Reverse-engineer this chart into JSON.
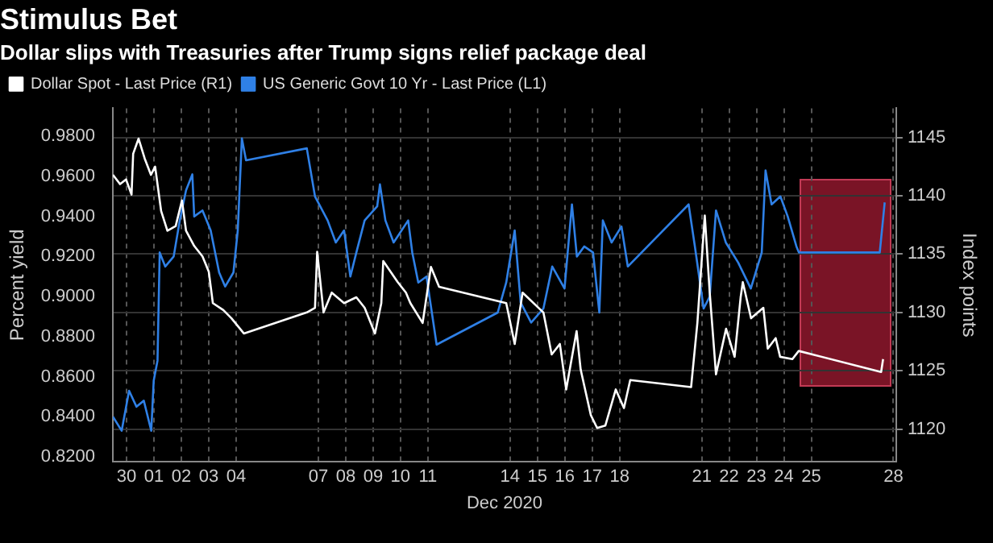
{
  "chart_data": {
    "type": "line",
    "title": "Stimulus Bet",
    "subtitle": "Dollar slips with Treasuries after Trump signs relief package deal",
    "xlabel": "Dec 2020",
    "ylabel": "Percent yield",
    "y2label": "Index points",
    "xlim": [
      "2020-11-30T00:00",
      "2020-12-28T14:24"
    ],
    "xticks": [
      {
        "value": "2020-11-30T12:00",
        "label": "30"
      },
      {
        "value": "2020-12-01T12:00",
        "label": "01"
      },
      {
        "value": "2020-12-02T12:00",
        "label": "02"
      },
      {
        "value": "2020-12-03T12:00",
        "label": "03"
      },
      {
        "value": "2020-12-04T12:00",
        "label": "04"
      },
      {
        "value": "2020-12-07T12:00",
        "label": "07"
      },
      {
        "value": "2020-12-08T12:00",
        "label": "08"
      },
      {
        "value": "2020-12-09T12:00",
        "label": "09"
      },
      {
        "value": "2020-12-10T12:00",
        "label": "10"
      },
      {
        "value": "2020-12-11T12:00",
        "label": "11"
      },
      {
        "value": "2020-12-14T12:00",
        "label": "14"
      },
      {
        "value": "2020-12-15T12:00",
        "label": "15"
      },
      {
        "value": "2020-12-16T12:00",
        "label": "16"
      },
      {
        "value": "2020-12-17T12:00",
        "label": "17"
      },
      {
        "value": "2020-12-18T12:00",
        "label": "18"
      },
      {
        "value": "2020-12-21T12:00",
        "label": "21"
      },
      {
        "value": "2020-12-22T12:00",
        "label": "22"
      },
      {
        "value": "2020-12-23T12:00",
        "label": "23"
      },
      {
        "value": "2020-12-24T12:00",
        "label": "24"
      },
      {
        "value": "2020-12-25T12:00",
        "label": "25"
      },
      {
        "value": "2020-12-28T12:00",
        "label": "28"
      }
    ],
    "ylim": [
      0.8175,
      0.994
    ],
    "yticks": [
      {
        "value": 0.82,
        "label": "0.8200"
      },
      {
        "value": 0.84,
        "label": "0.8400"
      },
      {
        "value": 0.86,
        "label": "0.8600"
      },
      {
        "value": 0.88,
        "label": "0.8800"
      },
      {
        "value": 0.9,
        "label": "0.9000"
      },
      {
        "value": 0.92,
        "label": "0.9200"
      },
      {
        "value": 0.94,
        "label": "0.9400"
      },
      {
        "value": 0.96,
        "label": "0.9600"
      },
      {
        "value": 0.98,
        "label": "0.9800"
      }
    ],
    "y2lim": [
      1117.2,
      1147.5
    ],
    "y2ticks": [
      1120,
      1125,
      1130,
      1135,
      1140,
      1145
    ],
    "grid": true,
    "legend": "top left",
    "marker": "none",
    "line_style": "solid",
    "series": [
      {
        "name": "Dollar Spot - Last Price (R1)",
        "color": "#ffffff",
        "axis": "y2",
        "x": [
          "2020-11-30T00:00",
          "2020-11-30T06:15",
          "2020-11-30T11:30",
          "2020-11-30T16:20",
          "2020-11-30T17:45",
          "2020-11-30T22:30",
          "2020-12-01T03:50",
          "2020-12-01T09:20",
          "2020-12-01T13:00",
          "2020-12-01T18:15",
          "2020-12-01T23:45",
          "2020-12-02T07:00",
          "2020-12-02T12:30",
          "2020-12-02T16:05",
          "2020-12-02T23:15",
          "2020-12-03T06:30",
          "2020-12-03T12:00",
          "2020-12-03T15:35",
          "2020-12-04T00:45",
          "2020-12-04T07:55",
          "2020-12-04T18:45",
          "2020-12-07T01:55",
          "2020-12-07T09:05",
          "2020-12-07T11:00",
          "2020-12-07T16:35",
          "2020-12-07T23:45",
          "2020-12-08T10:35",
          "2020-12-08T21:20",
          "2020-12-09T04:35",
          "2020-12-09T13:40",
          "2020-12-09T19:12",
          "2020-12-09T20:55",
          "2020-12-10T09:36",
          "2020-12-10T16:48",
          "2020-12-10T20:40",
          "2020-12-11T07:25",
          "2020-12-11T14:40",
          "2020-12-11T21:50",
          "2020-12-14T08:40",
          "2020-12-14T16:05",
          "2020-12-14T23:00",
          "2020-12-15T17:15",
          "2020-12-16T00:30",
          "2020-12-16T07:40",
          "2020-12-16T13:12",
          "2020-12-16T22:20",
          "2020-12-17T01:55",
          "2020-12-17T10:48",
          "2020-12-17T16:20",
          "2020-12-17T23:30",
          "2020-12-18T08:40",
          "2020-12-18T15:50",
          "2020-12-18T21:20",
          "2020-12-21T02:40",
          "2020-12-21T08:10",
          "2020-12-21T14:40",
          "2020-12-21T19:00",
          "2020-12-22T00:30",
          "2020-12-22T09:20",
          "2020-12-22T16:48",
          "2020-12-22T22:05",
          "2020-12-23T00:00",
          "2020-12-23T07:12",
          "2020-12-23T18:00",
          "2020-12-23T21:50",
          "2020-12-24T04:48",
          "2020-12-24T08:40",
          "2020-12-24T19:25",
          "2020-12-25T01:00",
          "2020-12-28T01:12",
          "2020-12-28T02:55"
        ],
        "values": [
          1141.8,
          1141.0,
          1141.4,
          1140.1,
          1143.6,
          1144.9,
          1143.2,
          1141.8,
          1142.5,
          1138.7,
          1137.0,
          1137.4,
          1139.6,
          1137.0,
          1135.7,
          1134.8,
          1133.5,
          1130.8,
          1130.2,
          1129.5,
          1128.2,
          1130.0,
          1130.4,
          1135.2,
          1130.0,
          1131.7,
          1130.8,
          1131.3,
          1130.4,
          1128.2,
          1130.8,
          1134.4,
          1132.6,
          1131.7,
          1130.8,
          1129.1,
          1133.9,
          1132.2,
          1130.8,
          1127.3,
          1131.7,
          1130.0,
          1126.4,
          1127.3,
          1123.4,
          1128.4,
          1125.1,
          1121.2,
          1120.1,
          1120.3,
          1123.4,
          1121.8,
          1124.2,
          1123.6,
          1129.1,
          1138.3,
          1131.7,
          1124.7,
          1128.6,
          1126.2,
          1131.3,
          1132.6,
          1129.5,
          1130.4,
          1126.9,
          1127.8,
          1126.2,
          1126.0,
          1126.7,
          1124.9,
          1126.0
        ]
      },
      {
        "name": "US Generic Govt 10 Yr - Last Price (L1)",
        "color": "#2f80e6",
        "x": [
          "2020-11-30T00:00",
          "2020-11-30T07:40",
          "2020-11-30T14:10",
          "2020-11-30T20:40",
          "2020-12-01T03:05",
          "2020-12-01T09:36",
          "2020-12-01T11:45",
          "2020-12-01T15:05",
          "2020-12-01T17:00",
          "2020-12-01T21:50",
          "2020-12-02T05:15",
          "2020-12-02T10:35",
          "2020-12-02T16:05",
          "2020-12-02T21:36",
          "2020-12-02T23:15",
          "2020-12-03T06:30",
          "2020-12-03T13:40",
          "2020-12-03T21:05",
          "2020-12-04T02:24",
          "2020-12-04T09:36",
          "2020-12-04T13:25",
          "2020-12-04T17:00",
          "2020-12-04T20:40",
          "2020-12-07T01:55",
          "2020-12-07T09:05",
          "2020-12-07T20:10",
          "2020-12-08T03:20",
          "2020-12-08T10:35",
          "2020-12-08T16:05",
          "2020-12-08T21:20",
          "2020-12-09T04:35",
          "2020-12-09T15:35",
          "2020-12-09T18:00",
          "2020-12-09T22:48",
          "2020-12-10T06:00",
          "2020-12-10T18:45",
          "2020-12-10T22:20",
          "2020-12-11T03:36",
          "2020-12-11T10:48",
          "2020-12-11T19:40",
          "2020-12-14T01:12",
          "2020-12-14T08:40",
          "2020-12-14T16:05",
          "2020-12-14T21:20",
          "2020-12-15T06:30",
          "2020-12-15T17:15",
          "2020-12-16T01:00",
          "2020-12-16T11:45",
          "2020-12-16T18:15",
          "2020-12-16T22:35",
          "2020-12-17T05:00",
          "2020-12-17T12:45",
          "2020-12-17T18:15",
          "2020-12-17T21:20",
          "2020-12-18T05:00",
          "2020-12-18T13:40",
          "2020-12-18T19:12",
          "2020-12-21T00:30",
          "2020-12-21T06:00",
          "2020-12-21T13:40",
          "2020-12-21T19:00",
          "2020-12-22T00:30",
          "2020-12-22T09:05",
          "2020-12-22T19:55",
          "2020-12-23T07:00",
          "2020-12-23T16:35",
          "2020-12-23T19:55",
          "2020-12-24T01:12",
          "2020-12-24T08:55",
          "2020-12-24T15:20",
          "2020-12-24T23:00",
          "2020-12-25T01:12",
          "2020-12-28T00:00",
          "2020-12-28T04:20"
        ],
        "values": [
          0.84,
          0.833,
          0.853,
          0.845,
          0.848,
          0.833,
          0.858,
          0.868,
          0.922,
          0.915,
          0.92,
          0.938,
          0.953,
          0.961,
          0.94,
          0.943,
          0.933,
          0.912,
          0.905,
          0.912,
          0.933,
          0.979,
          0.968,
          0.974,
          0.95,
          0.938,
          0.927,
          0.933,
          0.91,
          0.922,
          0.938,
          0.945,
          0.956,
          0.938,
          0.927,
          0.938,
          0.922,
          0.907,
          0.91,
          0.876,
          0.892,
          0.907,
          0.933,
          0.897,
          0.887,
          0.894,
          0.915,
          0.904,
          0.946,
          0.92,
          0.925,
          0.922,
          0.892,
          0.938,
          0.927,
          0.935,
          0.915,
          0.946,
          0.925,
          0.894,
          0.9,
          0.943,
          0.927,
          0.917,
          0.904,
          0.922,
          0.963,
          0.946,
          0.95,
          0.94,
          0.925,
          0.922,
          0.922,
          0.947
        ]
      }
    ]
  }
}
